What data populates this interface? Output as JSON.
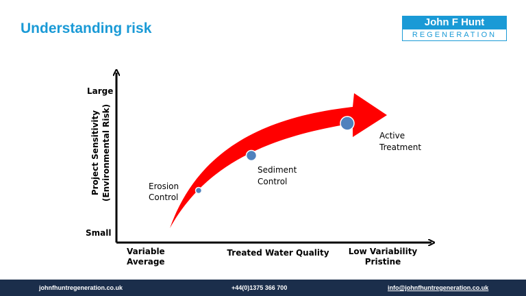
{
  "slide": {
    "title": "Understanding risk"
  },
  "logo": {
    "name_top": "John F Hunt",
    "name_bottom": "REGENERATION",
    "primary_color": "#1a9ad6"
  },
  "diagram": {
    "y_axis": {
      "label_line1": "Project Sensitivity",
      "label_line2": "(Environmental  Risk)",
      "top_label": "Large",
      "bottom_label": "Small"
    },
    "x_axis": {
      "label": "Treated Water Quality",
      "left_label_line1": "Variable",
      "left_label_line2": "Average",
      "right_label_line1": "Low Variability",
      "right_label_line2": "Pristine"
    },
    "points": [
      {
        "line1": "Erosion",
        "line2": "Control"
      },
      {
        "line1": "Sediment",
        "line2": "Control"
      },
      {
        "line1": "Active",
        "line2": "Treatment"
      }
    ],
    "arrow_color": "#ff0000",
    "point_color": "#4f81bd"
  },
  "footer": {
    "website": "johnfhuntregeneration.co.uk",
    "phone": "+44(0)1375 366 700",
    "email": "info@johnfhuntregeneration.co.uk",
    "background": "#1b2e4b"
  }
}
